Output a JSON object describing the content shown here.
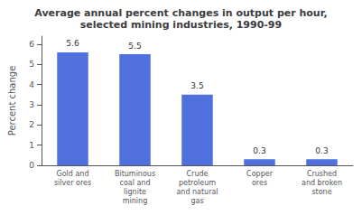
{
  "chart_data": {
    "type": "bar",
    "title": "Average annual percent changes in output per hour,\nselected mining industries, 1990-99",
    "categories": [
      "Gold and\nsilver ores",
      "Bituminous\ncoal and\nlignite\nmining",
      "Crude\npetroleum\nand natural\ngas",
      "Copper\nores",
      "Crushed\nand broken\nstone"
    ],
    "values": [
      5.6,
      5.5,
      3.5,
      0.3,
      0.3
    ],
    "ylabel": "Percent change",
    "ylim": [
      0,
      6.4
    ],
    "yticks": [
      0,
      1,
      2,
      3,
      4,
      5,
      6
    ],
    "grid": false,
    "data_labels": true
  }
}
